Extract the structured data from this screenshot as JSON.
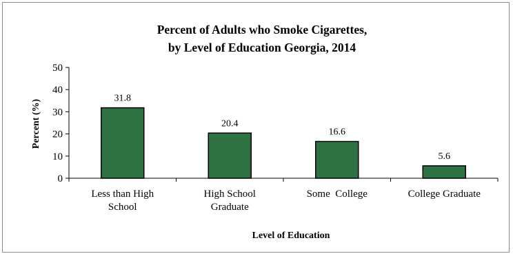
{
  "chart_data": {
    "type": "bar",
    "title_line1": "Percent of Adults who Smoke Cigarettes,",
    "title_line2": "by Level of Education Georgia, 2014",
    "xlabel": "Level of Education",
    "ylabel": "Percent (%)",
    "ylim": [
      0,
      50
    ],
    "yticks": [
      "0",
      "10",
      "20",
      "30",
      "40",
      "50"
    ],
    "categories": [
      [
        "Less than High",
        "School"
      ],
      [
        "High School",
        "Graduate"
      ],
      [
        "Some  College"
      ],
      [
        "College Graduate"
      ]
    ],
    "values": [
      31.8,
      20.4,
      16.6,
      5.6
    ],
    "data_labels": [
      "31.8",
      "20.4",
      "16.6",
      "5.6"
    ],
    "bar_color": "#2e7244",
    "bar_edge_color": "#000000",
    "grid": false,
    "legend": "none"
  }
}
